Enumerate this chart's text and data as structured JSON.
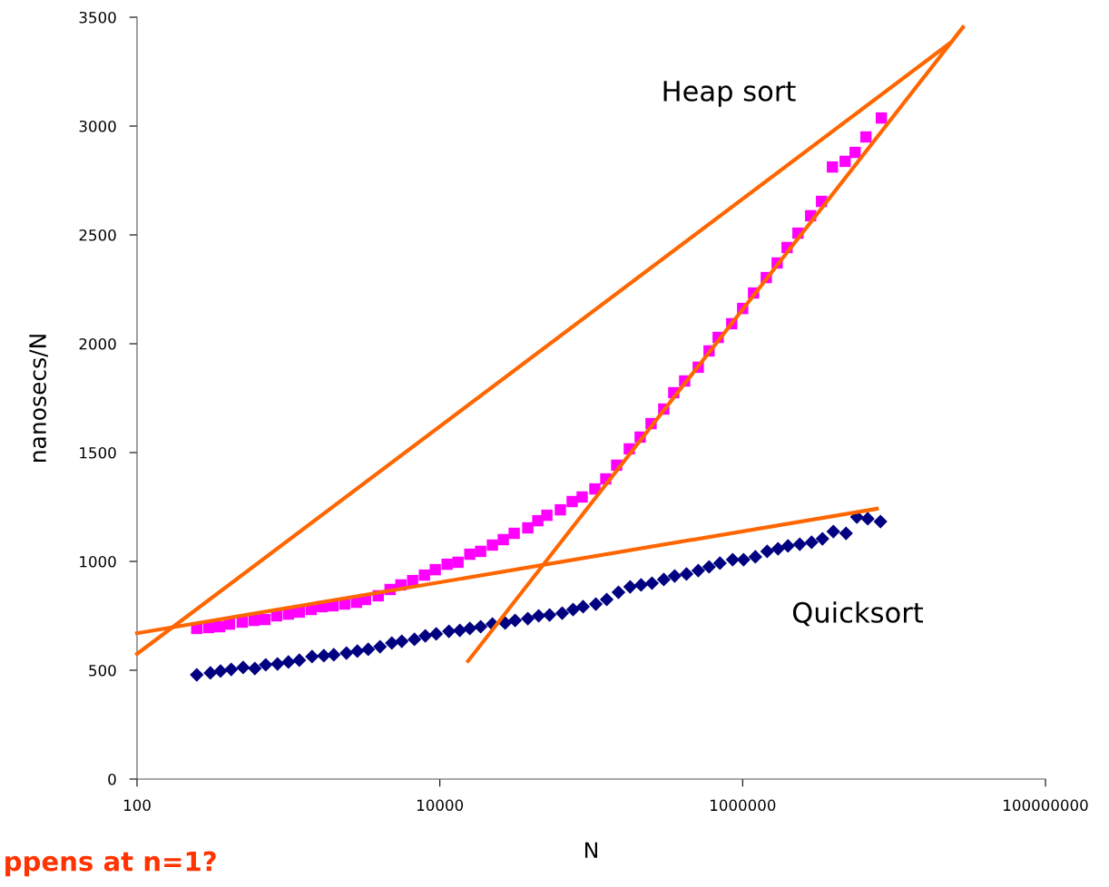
{
  "chart_data": {
    "type": "scatter",
    "xlabel": "N",
    "ylabel": "nanosecs/N",
    "log": "x",
    "xlim": [
      100,
      100000000
    ],
    "xticks": [
      100,
      10000,
      1000000,
      100000000
    ],
    "ylim": [
      0,
      3500
    ],
    "yticks": [
      0,
      500,
      1000,
      1500,
      2000,
      2500,
      3000,
      3500
    ],
    "grid": false,
    "series": [
      {
        "color": "#ff00ff",
        "marker": "square",
        "x": [
          248,
          297,
          351,
          408,
          495,
          592,
          699,
          836,
          1000,
          1180,
          1412,
          1667,
          1965,
          2350,
          2812,
          3228,
          3917,
          4688,
          5530,
          6610,
          7910,
          9330,
          11170,
          13180,
          15770,
          18600,
          22240,
          26240,
          30970,
          38100,
          44360,
          50930,
          62520,
          74820,
          87100,
          105700,
          124700,
          147200,
          178300,
          210400,
          248300,
          301300,
          350800,
          414000,
          509000,
          600000,
          689000,
          847000,
          1000000,
          1180000,
          1432000,
          1690000,
          1965000,
          2318000,
          2812000,
          3319000,
          3917000,
          4753000,
          5530000,
          6520000,
          8240000
        ],
        "values": [
          692,
          696,
          700,
          712,
          721,
          729,
          733,
          750,
          758,
          767,
          779,
          792,
          796,
          804,
          812,
          825,
          842,
          871,
          892,
          912,
          937,
          962,
          987,
          996,
          1033,
          1046,
          1075,
          1100,
          1129,
          1154,
          1187,
          1212,
          1237,
          1275,
          1296,
          1333,
          1379,
          1442,
          1517,
          1571,
          1633,
          1700,
          1775,
          1829,
          1892,
          1967,
          2029,
          2092,
          2162,
          2233,
          2304,
          2371,
          2442,
          2508,
          2588,
          2654,
          2812,
          2838,
          2879,
          2950,
          3037
        ]
      },
      {
        "color": "#000080",
        "marker": "diamond",
        "x": [
          248,
          305,
          356,
          419,
          502,
          600,
          708,
          847,
          1000,
          1180,
          1432,
          1713,
          1993,
          2417,
          2852,
          3365,
          4027,
          4818,
          5607,
          6796,
          8017,
          9463,
          11480,
          13550,
          15770,
          18600,
          22240,
          26980,
          31410,
          38100,
          44970,
          53060,
          64290,
          75860,
          88310,
          107200,
          126500,
          151300,
          180700,
          213300,
          251800,
          301300,
          355600,
          425600,
          509000,
          600000,
          708000,
          859000,
          1014000,
          1213000,
          1452000,
          1713000,
          1993000,
          2383000,
          2852000,
          3365000,
          3972000,
          4818000,
          5680000,
          6700000,
          8130000
        ],
        "values": [
          479,
          488,
          496,
          504,
          513,
          508,
          525,
          529,
          538,
          546,
          563,
          567,
          571,
          579,
          588,
          596,
          608,
          625,
          633,
          642,
          658,
          667,
          679,
          683,
          692,
          700,
          712,
          717,
          729,
          737,
          750,
          754,
          762,
          779,
          792,
          804,
          825,
          858,
          883,
          892,
          900,
          917,
          933,
          942,
          958,
          975,
          992,
          1008,
          1008,
          1021,
          1046,
          1058,
          1071,
          1079,
          1088,
          1104,
          1137,
          1129,
          1204,
          1196,
          1183
        ]
      },
      {
        "type": "line",
        "color": "#ff6600",
        "marker": "none",
        "line_style": "solid",
        "x": [
          100,
          23200000
        ],
        "values": [
          575,
          3379
        ]
      },
      {
        "type": "line",
        "color": "#ff6600",
        "marker": "none",
        "line_style": "solid",
        "x": [
          100,
          7690000
        ],
        "values": [
          670,
          1242
        ]
      },
      {
        "type": "line",
        "color": "#ff6600",
        "marker": "none",
        "line_style": "solid",
        "x": [
          15350,
          28500000
        ],
        "values": [
          542,
          3454
        ]
      }
    ],
    "annotations": [
      "Heap sort",
      "Quicksort",
      "ppens at n=1?"
    ]
  }
}
